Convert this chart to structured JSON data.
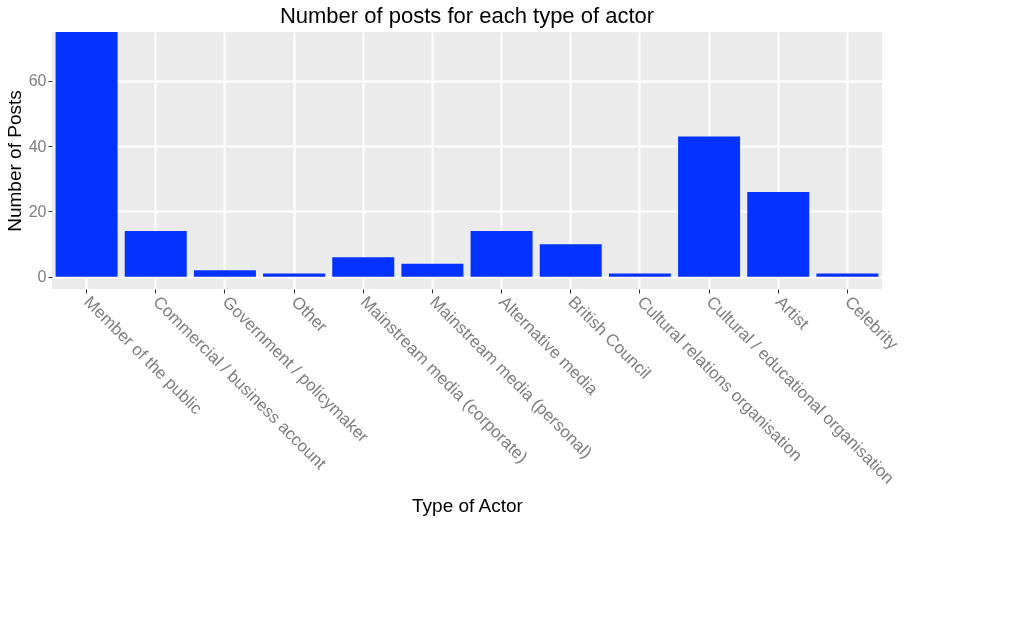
{
  "chart_data": {
    "type": "bar",
    "title": "Number of posts for each type of actor",
    "xlabel": "Type of Actor",
    "ylabel": "Number of Posts",
    "categories": [
      "Member of the public",
      "Commercial / business account",
      "Government / policymaker",
      "Other",
      "Mainstream media (corporate)",
      "Mainstream media (personal)",
      "Alternative media",
      "British Council",
      "Cultural relations organisation",
      "Cultural / educational organisation",
      "Artist",
      "Celebrity"
    ],
    "values": [
      75,
      14,
      2,
      1,
      6,
      4,
      14,
      10,
      1,
      43,
      26,
      1
    ],
    "color": "#0433ff",
    "ylim": [
      -3.75,
      75
    ],
    "yticks": [
      0,
      20,
      40,
      60
    ],
    "grid": true
  }
}
